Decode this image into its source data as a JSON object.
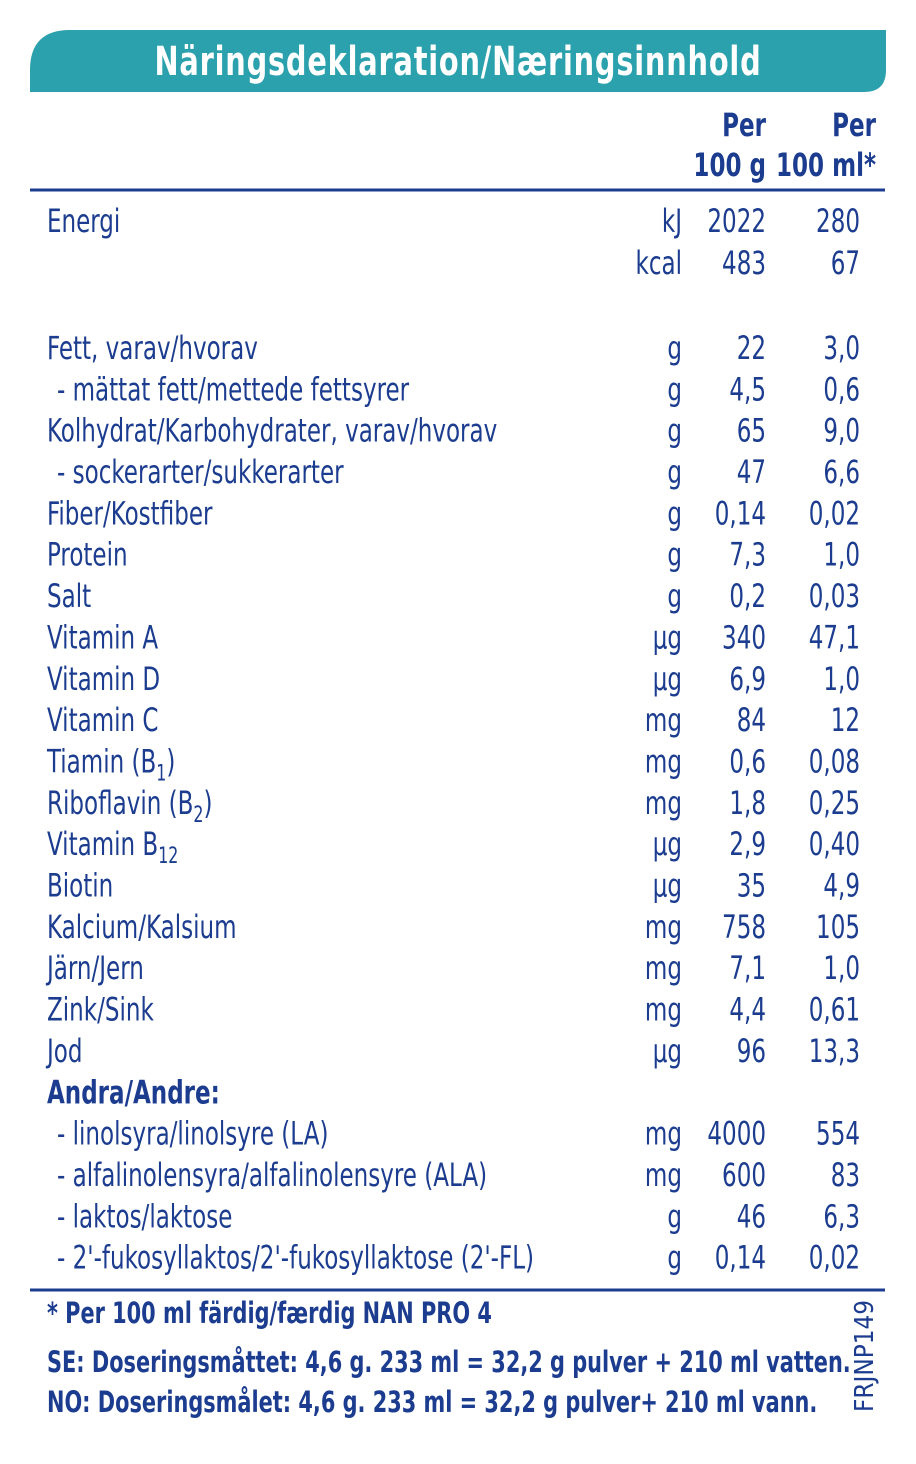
{
  "header": {
    "title": "Näringsdeklaration/Næringsinnhold"
  },
  "columns": [
    [
      "Per",
      "100 g"
    ],
    [
      "Per",
      "100 ml*"
    ]
  ],
  "energy": {
    "label": "Energi",
    "rows": [
      {
        "unit": "kJ",
        "per_100g": "2022",
        "per_100ml": "280"
      },
      {
        "unit": "kcal",
        "per_100g": "483",
        "per_100ml": "67"
      }
    ]
  },
  "nutrients": [
    {
      "label": "Fett, varav/hvorav",
      "unit": "g",
      "per_100g": "22",
      "per_100ml": "3,0"
    },
    {
      "label": "- mättat fett/mettede fettsyrer",
      "unit": "g",
      "per_100g": "4,5",
      "per_100ml": "0,6"
    },
    {
      "label": "Kolhydrat/Karbohydrater, varav/hvorav",
      "unit": "g",
      "per_100g": "65",
      "per_100ml": "9,0"
    },
    {
      "label": "- sockerarter/sukkerarter",
      "unit": "g",
      "per_100g": "47",
      "per_100ml": "6,6"
    },
    {
      "label": "Fiber/Kostfiber",
      "unit": "g",
      "per_100g": "0,14",
      "per_100ml": "0,02"
    },
    {
      "label": "Protein",
      "unit": "g",
      "per_100g": "7,3",
      "per_100ml": "1,0"
    },
    {
      "label": "Salt",
      "unit": "g",
      "per_100g": "0,2",
      "per_100ml": "0,03"
    },
    {
      "label": "Vitamin A",
      "unit": "µg",
      "per_100g": "340",
      "per_100ml": "47,1"
    },
    {
      "label": "Vitamin D",
      "unit": "µg",
      "per_100g": "6,9",
      "per_100ml": "1,0"
    },
    {
      "label": "Vitamin C",
      "unit": "mg",
      "per_100g": "84",
      "per_100ml": "12"
    },
    {
      "label": "Tiamin (B",
      "sub": "1",
      "label_end": ")",
      "unit": "mg",
      "per_100g": "0,6",
      "per_100ml": "0,08"
    },
    {
      "label": "Riboflavin (B",
      "sub": "2",
      "label_end": ")",
      "unit": "mg",
      "per_100g": "1,8",
      "per_100ml": "0,25"
    },
    {
      "label": "Vitamin B",
      "sub": "12",
      "unit": "µg",
      "per_100g": "2,9",
      "per_100ml": "0,40"
    },
    {
      "label": "Biotin",
      "unit": "µg",
      "per_100g": "35",
      "per_100ml": "4,9"
    },
    {
      "label": "Kalcium/Kalsium",
      "unit": "mg",
      "per_100g": "758",
      "per_100ml": "105"
    },
    {
      "label": "Järn/Jern",
      "unit": "mg",
      "per_100g": "7,1",
      "per_100ml": "1,0"
    },
    {
      "label": "Zink/Sink",
      "unit": "mg",
      "per_100g": "4,4",
      "per_100ml": "0,61"
    },
    {
      "label": "Jod",
      "unit": "µg",
      "per_100g": "96",
      "per_100ml": "13,3"
    },
    {
      "heading": "Andra/Andre:"
    },
    {
      "label": "- linolsyra/linolsyre (LA)",
      "unit": "mg",
      "per_100g": "4000",
      "per_100ml": "554"
    },
    {
      "label": "- alfalinolensyra/alfalinolensyre (ALA)",
      "unit": "mg",
      "per_100g": "600",
      "per_100ml": "83"
    },
    {
      "label": "- laktos/laktose",
      "unit": "g",
      "per_100g": "46",
      "per_100ml": "6,3"
    },
    {
      "label": "- 2'-fukosyllaktos/2'-fukosyllaktose (2'-FL)",
      "unit": "g",
      "per_100g": "0,14",
      "per_100ml": "0,02"
    }
  ],
  "footnotes": [
    "*  Per 100 ml färdig/færdig NAN PRO 4",
    "SE: Doseringsmåttet: 4,6 g. 233 ml = 32,2 g pulver + 210 ml vatten.",
    "NO: Doseringsmålet: 4,6 g. 233 ml = 32,2 g pulver+ 210 ml vann."
  ],
  "code": "FRJNP149"
}
